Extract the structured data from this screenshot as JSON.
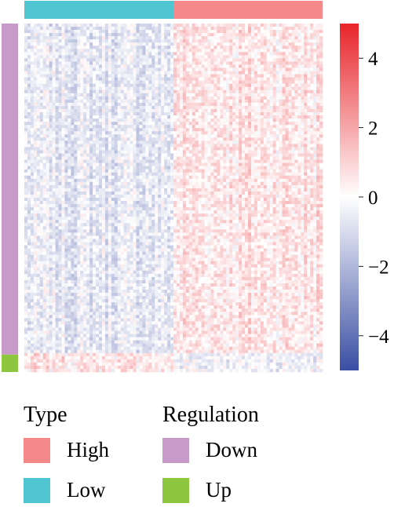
{
  "chart_data": {
    "type": "heatmap",
    "color_scale": {
      "min": -5,
      "max": 5,
      "ticks": [
        4,
        2,
        0,
        -2,
        -4
      ],
      "tick_labels": [
        "4",
        "2",
        "0",
        "−2",
        "−4"
      ],
      "colors": {
        "low": "#3a4ea3",
        "mid": "#ffffff",
        "high": "#e8242a"
      }
    },
    "column_annotation": {
      "name": "Type",
      "groups": [
        {
          "label": "Low",
          "color": "#4ec5d0",
          "fraction": 0.5
        },
        {
          "label": "High",
          "color": "#f5898a",
          "fraction": 0.5
        }
      ]
    },
    "row_annotation": {
      "name": "Regulation",
      "groups": [
        {
          "label": "Down",
          "color": "#c79ac9",
          "fraction": 0.95
        },
        {
          "label": "Up",
          "color": "#8dc63f",
          "fraction": 0.05
        }
      ]
    },
    "group_mean_values": {
      "Low_Down": -0.6,
      "High_Down": 0.6,
      "Low_Up": 0.5,
      "High_Up": -0.3
    }
  },
  "legend": {
    "type_title": "Type",
    "type_items": [
      {
        "label": "High",
        "color": "#f5898a"
      },
      {
        "label": "Low",
        "color": "#4ec5d0"
      }
    ],
    "regulation_title": "Regulation",
    "regulation_items": [
      {
        "label": "Down",
        "color": "#c79ac9"
      },
      {
        "label": "Up",
        "color": "#8dc63f"
      }
    ]
  }
}
